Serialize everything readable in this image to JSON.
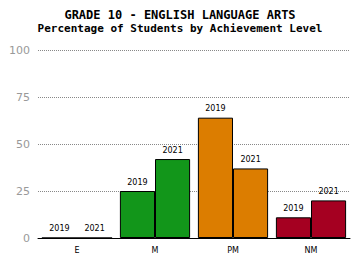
{
  "chart_data": {
    "type": "bar",
    "title": "GRADE 10 - ENGLISH LANGUAGE ARTS",
    "subtitle": "Percentage of Students by Achievement Level",
    "categories": [
      "E",
      "M",
      "PM",
      "NM"
    ],
    "series": [
      {
        "name": "2019",
        "values": [
          0,
          25,
          64,
          11
        ]
      },
      {
        "name": "2021",
        "values": [
          0,
          42,
          37,
          20
        ]
      }
    ],
    "colors": [
      "#1f5fa8",
      "#12961a",
      "#dc7d00",
      "#a50021"
    ],
    "ylim": [
      0,
      100
    ],
    "yticks": [
      0,
      25,
      50,
      75,
      100
    ],
    "grid": true
  }
}
